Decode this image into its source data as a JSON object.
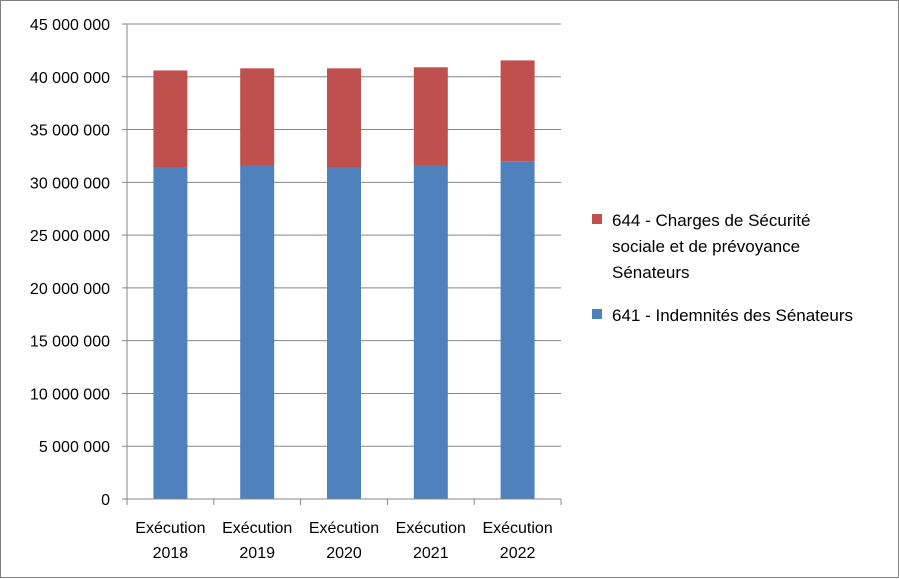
{
  "chart_data": {
    "type": "bar",
    "stacked": true,
    "categories": [
      [
        "Exécution",
        "2018"
      ],
      [
        "Exécution",
        "2019"
      ],
      [
        "Exécution",
        "2020"
      ],
      [
        "Exécution",
        "2021"
      ],
      [
        "Exécution",
        "2022"
      ]
    ],
    "series": [
      {
        "name": "641 - Indemnités des Sénateurs",
        "color": "#4f81bd",
        "values": [
          31400000,
          31550000,
          31450000,
          31550000,
          32000000
        ]
      },
      {
        "name": "644 - Charges de Sécurité sociale et de prévoyance Sénateurs",
        "name_lines": [
          "644 - Charges de Sécurité",
          "sociale et de prévoyance",
          "Sénateurs"
        ],
        "color": "#c0504d",
        "values": [
          9200000,
          9250000,
          9350000,
          9350000,
          9550000
        ]
      }
    ],
    "ylim": [
      0,
      45000000
    ],
    "yticks": [
      0,
      5000000,
      10000000,
      15000000,
      20000000,
      25000000,
      30000000,
      35000000,
      40000000,
      45000000
    ],
    "ytick_labels": [
      "0",
      "5 000 000",
      "10 000 000",
      "15 000 000",
      "20 000 000",
      "25 000 000",
      "30 000 000",
      "35 000 000",
      "40 000 000",
      "45 000 000"
    ],
    "grid": true,
    "legend_position": "right",
    "gridline_color": "#868686",
    "axis_color": "#868686"
  }
}
